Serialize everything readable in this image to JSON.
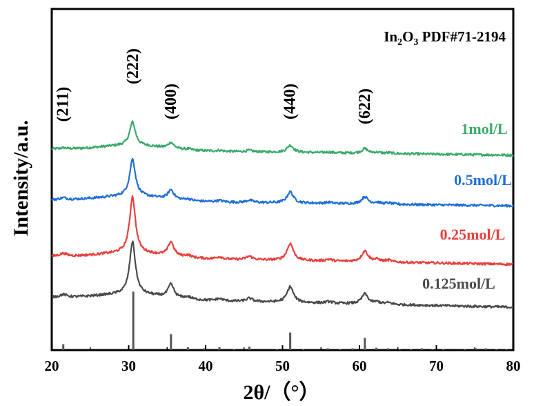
{
  "chart_data": {
    "type": "line",
    "title": "",
    "xlabel": "2θ/（°）",
    "ylabel": "Intensity/a.u.",
    "xlim": [
      20,
      80
    ],
    "xticks": [
      20,
      30,
      40,
      50,
      60,
      70,
      80
    ],
    "y_ticks_shown": false,
    "reference": {
      "label": "In2O3 PDF#71-2194",
      "label_main": "In",
      "label_sub1": "2",
      "label_mid": "O",
      "label_sub2": "3",
      "label_tail": " PDF#71-2194",
      "color": "#555555",
      "peaks": [
        {
          "x": 21.5,
          "rel": 0.1
        },
        {
          "x": 30.6,
          "rel": 1.0
        },
        {
          "x": 35.5,
          "rel": 0.27
        },
        {
          "x": 37.7,
          "rel": 0.05
        },
        {
          "x": 39.8,
          "rel": 0.03
        },
        {
          "x": 41.8,
          "rel": 0.05
        },
        {
          "x": 43.7,
          "rel": 0.02
        },
        {
          "x": 45.7,
          "rel": 0.06
        },
        {
          "x": 49.3,
          "rel": 0.02
        },
        {
          "x": 51.0,
          "rel": 0.3
        },
        {
          "x": 52.7,
          "rel": 0.02
        },
        {
          "x": 55.9,
          "rel": 0.03
        },
        {
          "x": 57.5,
          "rel": 0.02
        },
        {
          "x": 59.1,
          "rel": 0.03
        },
        {
          "x": 60.7,
          "rel": 0.21
        },
        {
          "x": 62.2,
          "rel": 0.04
        },
        {
          "x": 63.7,
          "rel": 0.03
        },
        {
          "x": 65.2,
          "rel": 0.02
        },
        {
          "x": 66.7,
          "rel": 0.02
        },
        {
          "x": 68.1,
          "rel": 0.03
        },
        {
          "x": 69.5,
          "rel": 0.02
        },
        {
          "x": 70.9,
          "rel": 0.02
        },
        {
          "x": 73.7,
          "rel": 0.02
        },
        {
          "x": 75.1,
          "rel": 0.03
        },
        {
          "x": 76.4,
          "rel": 0.03
        },
        {
          "x": 77.8,
          "rel": 0.02
        },
        {
          "x": 79.1,
          "rel": 0.02
        }
      ]
    },
    "peak_labels": [
      {
        "text": "(211)",
        "x": 21.5
      },
      {
        "text": "(222)",
        "x": 30.6
      },
      {
        "text": "(400)",
        "x": 35.5
      },
      {
        "text": "(440)",
        "x": 51.0
      },
      {
        "text": "(622)",
        "x": 60.7
      }
    ],
    "peak_shape": [
      {
        "x": 21.5,
        "w": 0.55,
        "h": 0.05
      },
      {
        "x": 30.5,
        "w": 0.45,
        "h": 1.0
      },
      {
        "x": 35.5,
        "w": 0.45,
        "h": 0.25
      },
      {
        "x": 37.7,
        "w": 0.5,
        "h": 0.04
      },
      {
        "x": 41.8,
        "w": 0.5,
        "h": 0.04
      },
      {
        "x": 45.7,
        "w": 0.5,
        "h": 0.06
      },
      {
        "x": 51.0,
        "w": 0.5,
        "h": 0.3
      },
      {
        "x": 56.0,
        "w": 0.5,
        "h": 0.03
      },
      {
        "x": 60.7,
        "w": 0.5,
        "h": 0.19
      },
      {
        "x": 62.3,
        "w": 0.5,
        "h": 0.04
      },
      {
        "x": 63.8,
        "w": 0.5,
        "h": 0.03
      }
    ],
    "series": [
      {
        "name": "1mol/L",
        "color": "#3aaa6a",
        "baseline_start": 10.3,
        "baseline_end": 10.0,
        "peak_scale": 1.2
      },
      {
        "name": "0.5mol/L",
        "color": "#1f6fd6",
        "baseline_start": 7.7,
        "baseline_end": 7.4,
        "peak_scale": 1.9
      },
      {
        "name": "0.25mol/L",
        "color": "#e8403c",
        "baseline_start": 4.8,
        "baseline_end": 4.4,
        "peak_scale": 2.9
      },
      {
        "name": "0.125mol/L",
        "color": "#4a4a4a",
        "baseline_start": 2.7,
        "baseline_end": 2.2,
        "peak_scale": 2.7
      }
    ],
    "reference_scale": 3.0,
    "ylim": [
      0,
      17.5
    ]
  }
}
